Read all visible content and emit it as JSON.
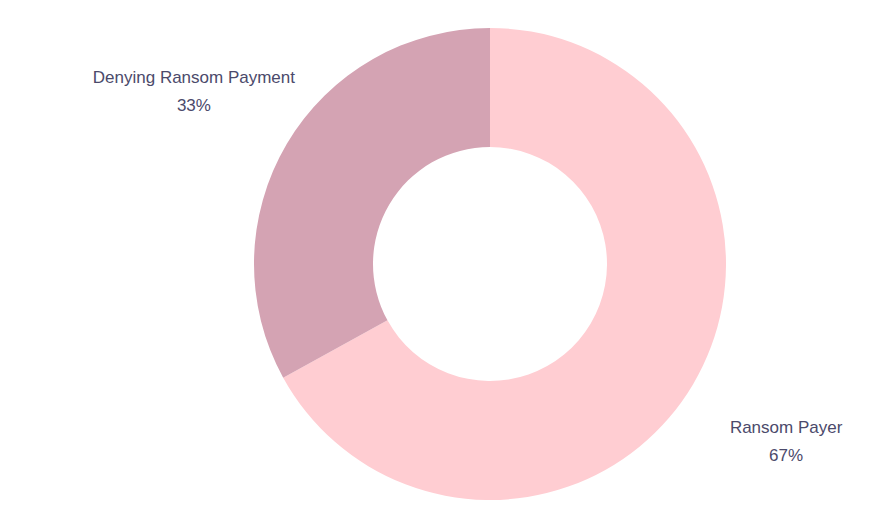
{
  "chart_data": {
    "type": "pie",
    "categories": [
      "Ransom Payer",
      "Denying Ransom Payment"
    ],
    "values": [
      67,
      33
    ],
    "value_labels": [
      "67%",
      "33%"
    ],
    "colors": [
      "#FFCDD2",
      "#D4A3B3"
    ],
    "data_labels": true
  }
}
